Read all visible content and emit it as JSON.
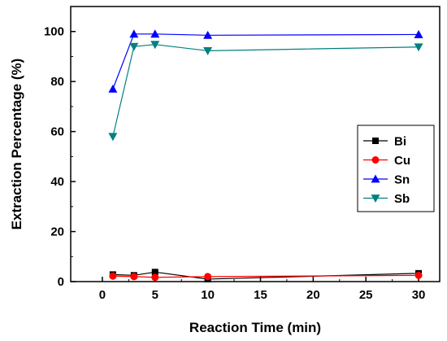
{
  "chart_data": {
    "type": "line",
    "xlabel": "Reaction Time (min)",
    "ylabel": "Extraction Percentage (%)",
    "xlim": [
      -3,
      32
    ],
    "ylim": [
      0,
      110
    ],
    "xticks": [
      0,
      5,
      10,
      15,
      20,
      25,
      30
    ],
    "yticks": [
      0,
      20,
      40,
      60,
      80,
      100
    ],
    "legend_position": "right",
    "series": [
      {
        "name": "Bi",
        "marker": "square",
        "color": "#000000",
        "x": [
          1,
          3,
          5,
          10,
          30
        ],
        "y": [
          2.8,
          2.5,
          3.8,
          1.0,
          3.3
        ]
      },
      {
        "name": "Cu",
        "marker": "circle",
        "color": "#ff0000",
        "x": [
          1,
          3,
          5,
          10,
          30
        ],
        "y": [
          2.2,
          2.0,
          1.7,
          2.0,
          2.5
        ]
      },
      {
        "name": "Sn",
        "marker": "triangle-up",
        "color": "#0000ff",
        "x": [
          1,
          3,
          5,
          10,
          30
        ],
        "y": [
          77.0,
          99.0,
          99.0,
          98.5,
          98.8
        ]
      },
      {
        "name": "Sb",
        "marker": "triangle-down",
        "color": "#008080",
        "x": [
          1,
          3,
          5,
          10,
          30
        ],
        "y": [
          58.0,
          94.0,
          94.8,
          92.3,
          93.8
        ]
      }
    ]
  }
}
